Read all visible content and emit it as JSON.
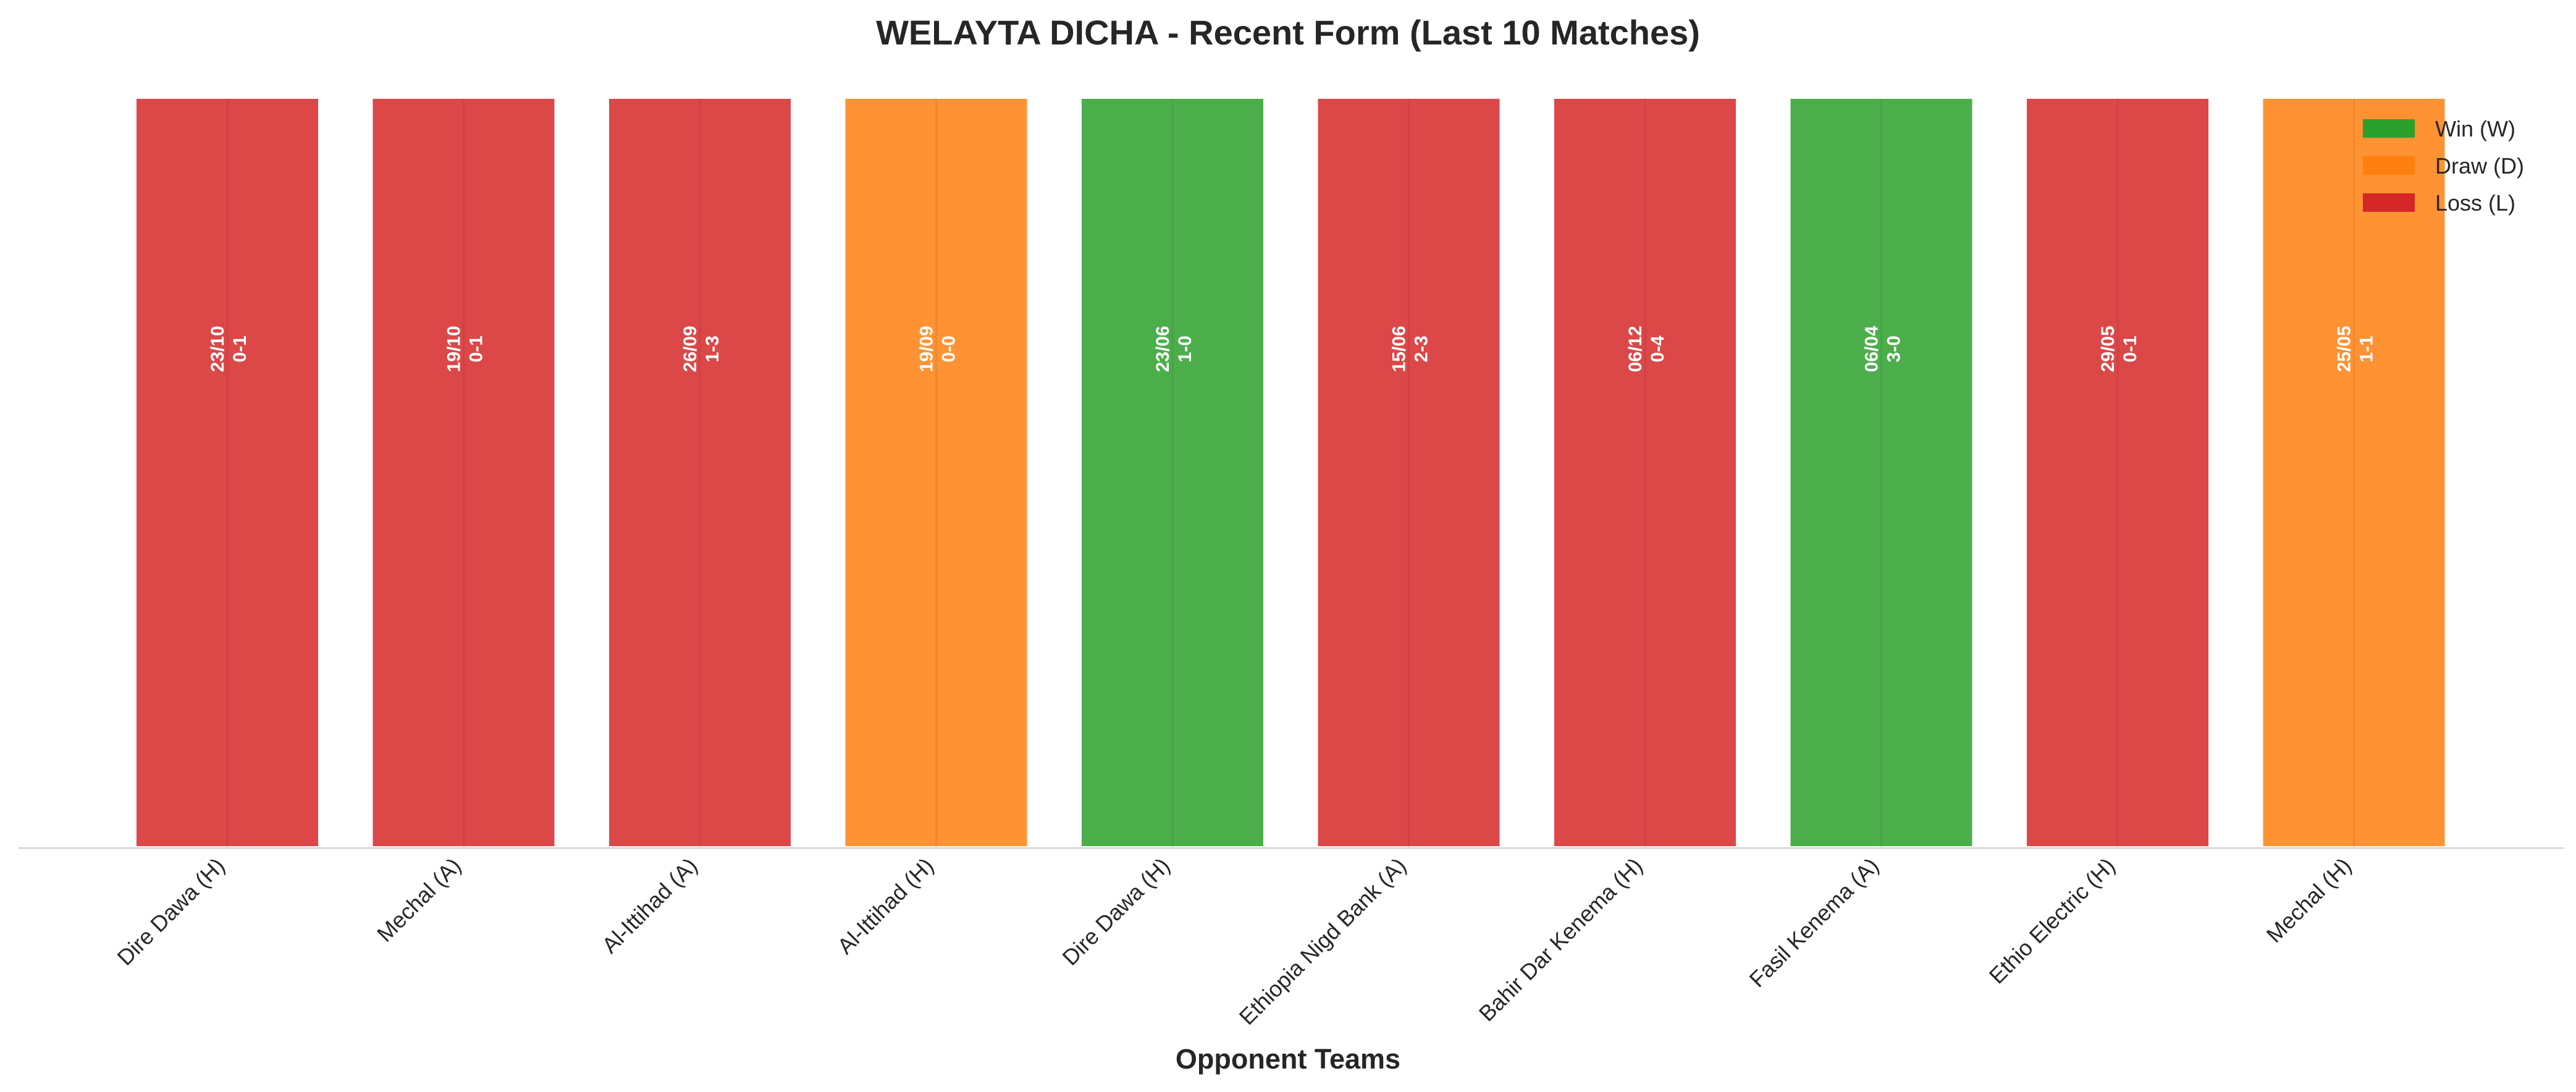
{
  "chart_data": {
    "type": "bar",
    "title": "WELAYTA DICHA - Recent Form (Last 10 Matches)",
    "xlabel": "Opponent Teams",
    "ylabel": "",
    "categories": [
      "Dire Dawa (H)",
      "Mechal (A)",
      "Al-Ittihad (A)",
      "Al-Ittihad (H)",
      "Dire Dawa (H)",
      "Ethiopia Nigd Bank (A)",
      "Bahir Dar Kenema (H)",
      "Fasil Kenema (A)",
      "Ethio Electric (H)",
      "Mechal (H)"
    ],
    "values": [
      1,
      1,
      1,
      1,
      1,
      1,
      1,
      1,
      1,
      1
    ],
    "results": [
      "L",
      "L",
      "L",
      "D",
      "W",
      "L",
      "L",
      "W",
      "L",
      "D"
    ],
    "dates": [
      "23/10",
      "19/10",
      "26/09",
      "19/09",
      "23/06",
      "15/06",
      "06/12",
      "06/04",
      "29/05",
      "25/05"
    ],
    "scores": [
      "0-1",
      "0-1",
      "1-3",
      "0-0",
      "1-0",
      "2-3",
      "0-4",
      "3-0",
      "0-1",
      "1-1"
    ],
    "ylim": [
      0,
      1
    ],
    "grid": false,
    "legend_position": "top-right",
    "legend": [
      {
        "key": "W",
        "label": "Win (W)",
        "color": "#2ca02c"
      },
      {
        "key": "D",
        "label": "Draw (D)",
        "color": "#ff7f0e"
      },
      {
        "key": "L",
        "label": "Loss (L)",
        "color": "#d62728"
      }
    ]
  }
}
